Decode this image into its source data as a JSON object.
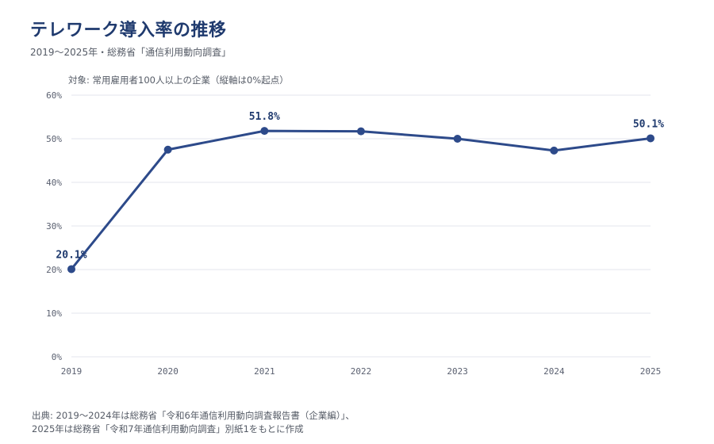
{
  "title": "テレワーク導入率の推移",
  "subtitle": "2019〜2025年・総務省「通信利用動向調査」",
  "note": "対象: 常用雇用者100人以上の企業（縦軸は0%起点）",
  "source": {
    "line1": "出典: 2019〜2024年は総務省「令和6年通信利用動向調査報告書（企業編）」、",
    "line2": "2025年は総務省「令和7年通信利用動向調査」別紙1をもとに作成"
  },
  "colors": {
    "line": "#2d4a8a",
    "grid": "#e3e6ec",
    "label": "#1f3a6e"
  },
  "chart_data": {
    "type": "line",
    "x": [
      "2019",
      "2020",
      "2021",
      "2022",
      "2023",
      "2024",
      "2025"
    ],
    "series": [
      {
        "values": [
          20.1,
          47.5,
          51.8,
          51.7,
          50.0,
          47.3,
          50.1
        ]
      }
    ],
    "yticks": [
      "0%",
      "10%",
      "20%",
      "30%",
      "40%",
      "50%",
      "60%"
    ],
    "ylim": [
      0,
      60
    ],
    "grid": true,
    "data_labels": [
      {
        "index": 0,
        "text": "20.1%"
      },
      {
        "index": 2,
        "text": "51.8%"
      },
      {
        "index": 6,
        "text": "50.1%"
      }
    ]
  }
}
